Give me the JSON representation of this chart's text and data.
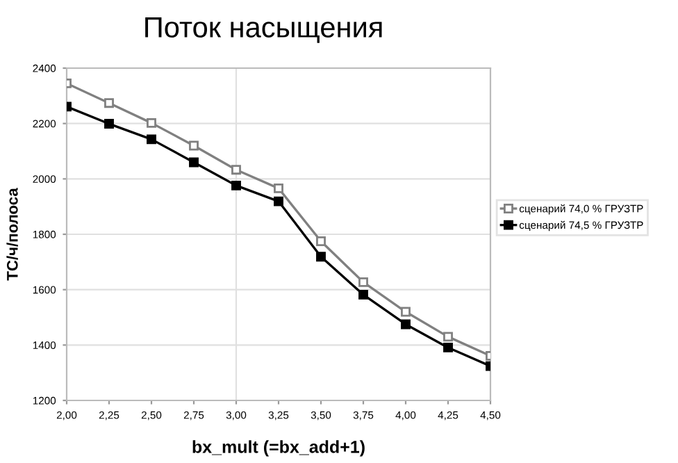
{
  "chart_data": {
    "type": "line",
    "title": "Поток насыщения",
    "xlabel": "bx_mult (=bx_add+1)",
    "ylabel": "ТС/ч/полоса",
    "x": [
      2.0,
      2.25,
      2.5,
      2.75,
      3.0,
      3.25,
      3.5,
      3.75,
      4.0,
      4.25,
      4.5
    ],
    "series": [
      {
        "name": "сценарий 74,0 % ГРУЗТР",
        "color": "#808080",
        "values": [
          2345,
          2274,
          2202,
          2120,
          2033,
          1966,
          1775,
          1627,
          1520,
          1430,
          1361
        ]
      },
      {
        "name": "сценарий 74,5 % ГРУЗТР",
        "color": "#000000",
        "values": [
          2261,
          2199,
          2143,
          2060,
          1976,
          1919,
          1719,
          1582,
          1475,
          1391,
          1324
        ]
      }
    ],
    "xlim": [
      2.0,
      4.5
    ],
    "xticks": [
      {
        "value": 2.0,
        "label": "2,00"
      },
      {
        "value": 2.25,
        "label": "2,25"
      },
      {
        "value": 2.5,
        "label": "2,50"
      },
      {
        "value": 2.75,
        "label": "2,75"
      },
      {
        "value": 3.0,
        "label": "3,00"
      },
      {
        "value": 3.25,
        "label": "3,25"
      },
      {
        "value": 3.5,
        "label": "3,50"
      },
      {
        "value": 3.75,
        "label": "3,75"
      },
      {
        "value": 4.0,
        "label": "4,00"
      },
      {
        "value": 4.25,
        "label": "4,25"
      },
      {
        "value": 4.5,
        "label": "4,50"
      }
    ],
    "ylim": [
      1200,
      2400
    ],
    "yticks": [
      1200,
      1400,
      1600,
      1800,
      2000,
      2200,
      2400
    ],
    "ref_lines": [
      {
        "axis": "x",
        "value": 3.0,
        "label": null,
        "color": "#e0e0e0"
      }
    ],
    "grid": "y",
    "legend": "right",
    "marker": "square",
    "line_style": "solid"
  }
}
